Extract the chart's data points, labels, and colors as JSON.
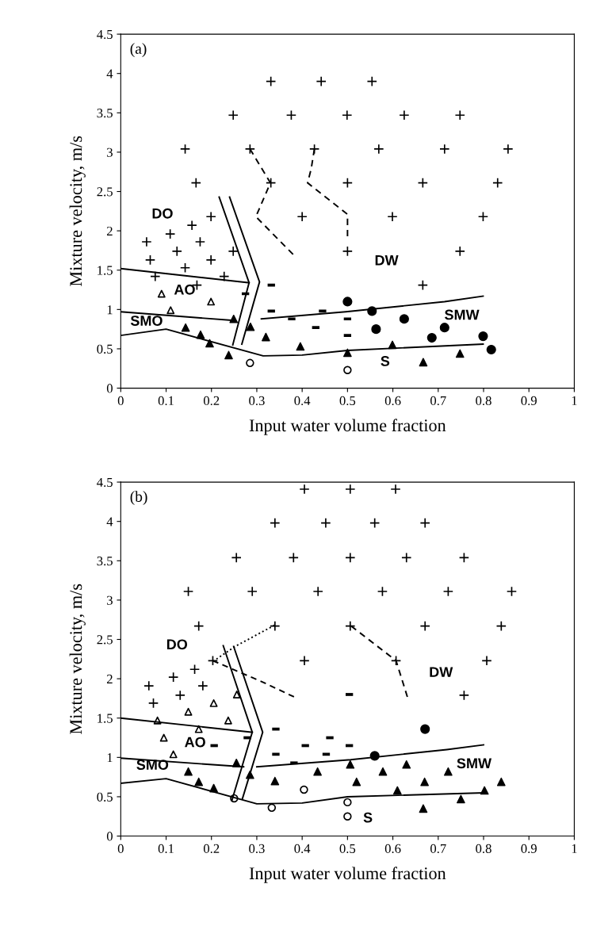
{
  "chart_data": [
    {
      "type": "scatter",
      "xlabel": "Input water volume fraction",
      "ylabel": "Mixture velocity, m/s",
      "xlim": [
        0,
        1
      ],
      "ylim": [
        0,
        4.5
      ],
      "xticks": [
        0,
        0.1,
        0.2,
        0.3,
        0.4,
        0.5,
        0.6,
        0.7,
        0.8,
        0.9,
        1
      ],
      "yticks": [
        0,
        0.5,
        1,
        1.5,
        2,
        2.5,
        3,
        3.5,
        4,
        4.5
      ],
      "grid": false,
      "legend": false,
      "annotations": [
        "(a)",
        "DO",
        "AO",
        "SMO",
        "DW",
        "SMW",
        "S"
      ],
      "series": [
        {
          "marker": "plus",
          "color": "#000000",
          "x": [
            0.331,
            0.442,
            0.248,
            0.376,
            0.499,
            0.142,
            0.285,
            0.427,
            0.166,
            0.331,
            0.5,
            0.199,
            0.4,
            0.157,
            0.109,
            0.057,
            0.175,
            0.124,
            0.248,
            0.5,
            0.065,
            0.199,
            0.142,
            0.076,
            0.228,
            0.168,
            0.554,
            0.625,
            0.748,
            0.569,
            0.714,
            0.854,
            0.666,
            0.831,
            0.599,
            0.799,
            0.748,
            0.666
          ],
          "values": [
            3.9,
            3.9,
            3.47,
            3.47,
            3.47,
            3.04,
            3.04,
            3.04,
            2.61,
            2.61,
            2.61,
            2.18,
            2.18,
            2.07,
            1.96,
            1.86,
            1.86,
            1.74,
            1.74,
            1.74,
            1.63,
            1.63,
            1.53,
            1.42,
            1.42,
            1.31,
            3.9,
            3.47,
            3.47,
            3.04,
            3.04,
            3.04,
            2.61,
            2.61,
            2.18,
            2.18,
            1.74,
            1.31
          ]
        },
        {
          "marker": "triangle-open",
          "color": "#000000",
          "x": [
            0.09,
            0.11,
            0.199
          ],
          "values": [
            1.2,
            0.99,
            1.1
          ]
        },
        {
          "marker": "square",
          "color": "#000000",
          "x": [
            0.275,
            0.332,
            0.332,
            0.377,
            0.43,
            0.445,
            0.5,
            0.5
          ],
          "values": [
            1.2,
            1.31,
            0.98,
            0.88,
            0.77,
            0.98,
            0.88,
            0.67
          ]
        },
        {
          "marker": "circle",
          "color": "#000000",
          "x": [
            0.5,
            0.554,
            0.625,
            0.563,
            0.714,
            0.686,
            0.799,
            0.817
          ],
          "values": [
            1.1,
            0.98,
            0.88,
            0.75,
            0.77,
            0.64,
            0.66,
            0.49
          ]
        },
        {
          "marker": "triangle",
          "color": "#000000",
          "x": [
            0.249,
            0.143,
            0.176,
            0.196,
            0.238,
            0.286,
            0.32,
            0.396,
            0.5,
            0.599,
            0.667,
            0.748
          ],
          "values": [
            0.88,
            0.77,
            0.68,
            0.57,
            0.42,
            0.78,
            0.65,
            0.53,
            0.45,
            0.55,
            0.33,
            0.44
          ]
        },
        {
          "marker": "circle-open",
          "color": "#000000",
          "x": [
            0.285,
            0.5
          ],
          "values": [
            0.32,
            0.23
          ]
        },
        {
          "type": "line",
          "line_style": "solid",
          "color": "#000000",
          "x": [
            0,
            0.283
          ],
          "values": [
            1.52,
            1.34
          ]
        },
        {
          "type": "line",
          "line_style": "solid",
          "color": "#000000",
          "x": [
            0,
            0.249
          ],
          "values": [
            0.97,
            0.86
          ]
        },
        {
          "type": "line",
          "line_style": "solid",
          "color": "#000000",
          "x": [
            0.31,
            0.496,
            0.714,
            0.799
          ],
          "values": [
            0.88,
            0.97,
            1.1,
            1.17
          ]
        },
        {
          "type": "line",
          "line_style": "solid",
          "color": "#000000",
          "x": [
            0,
            0.1,
            0.314,
            0.4,
            0.5,
            0.799
          ],
          "values": [
            0.67,
            0.75,
            0.41,
            0.42,
            0.48,
            0.56
          ]
        },
        {
          "type": "line",
          "line_style": "solid",
          "color": "#000000",
          "x": [
            0.217,
            0.283,
            0.247
          ],
          "values": [
            2.43,
            1.34,
            0.55
          ]
        },
        {
          "type": "line",
          "line_style": "solid",
          "color": "#000000",
          "x": [
            0.24,
            0.306,
            0.267
          ],
          "values": [
            2.43,
            1.35,
            0.56
          ]
        },
        {
          "type": "line",
          "line_style": "dashed",
          "color": "#000000",
          "x": [
            0.285,
            0.33,
            0.298,
            0.38
          ],
          "values": [
            3.04,
            2.61,
            2.18,
            1.7
          ]
        },
        {
          "type": "line",
          "line_style": "dashed",
          "color": "#000000",
          "x": [
            0.427,
            0.42,
            0.412,
            0.5,
            0.5
          ],
          "values": [
            3.04,
            2.79,
            2.61,
            2.21,
            1.93
          ]
        }
      ]
    },
    {
      "type": "scatter",
      "xlabel": "Input water volume fraction",
      "ylabel": "Mixture velocity, m/s",
      "xlim": [
        0,
        1
      ],
      "ylim": [
        0,
        4.5
      ],
      "xticks": [
        0,
        0.1,
        0.2,
        0.3,
        0.4,
        0.5,
        0.6,
        0.7,
        0.8,
        0.9,
        1
      ],
      "yticks": [
        0,
        0.5,
        1,
        1.5,
        2,
        2.5,
        3,
        3.5,
        4,
        4.5
      ],
      "grid": false,
      "legend": false,
      "annotations": [
        "(b)",
        "DO",
        "AO",
        "SMO",
        "DW",
        "SMW",
        "S"
      ],
      "series": [
        {
          "marker": "plus",
          "color": "#000000",
          "x": [
            0.405,
            0.506,
            0.606,
            0.34,
            0.452,
            0.56,
            0.671,
            0.255,
            0.381,
            0.506,
            0.63,
            0.757,
            0.149,
            0.29,
            0.435,
            0.577,
            0.722,
            0.862,
            0.172,
            0.34,
            0.506,
            0.671,
            0.839,
            0.405,
            0.203,
            0.607,
            0.807,
            0.163,
            0.116,
            0.062,
            0.181,
            0.131,
            0.072,
            0.757
          ],
          "values": [
            4.41,
            4.41,
            4.41,
            3.98,
            3.98,
            3.98,
            3.98,
            3.54,
            3.54,
            3.54,
            3.54,
            3.54,
            3.11,
            3.11,
            3.11,
            3.11,
            3.11,
            3.11,
            2.67,
            2.67,
            2.67,
            2.67,
            2.67,
            2.23,
            2.23,
            2.23,
            2.23,
            2.12,
            2.02,
            1.91,
            1.91,
            1.79,
            1.69,
            1.79
          ]
        },
        {
          "marker": "triangle-open",
          "color": "#000000",
          "x": [
            0.081,
            0.149,
            0.205,
            0.256,
            0.172,
            0.237,
            0.095,
            0.116
          ],
          "values": [
            1.47,
            1.58,
            1.69,
            1.8,
            1.36,
            1.47,
            1.25,
            1.04
          ]
        },
        {
          "marker": "square",
          "color": "#000000",
          "x": [
            0.279,
            0.206,
            0.342,
            0.342,
            0.407,
            0.461,
            0.453,
            0.382,
            0.504,
            0.504
          ],
          "values": [
            1.25,
            1.15,
            1.36,
            1.04,
            1.15,
            1.25,
            1.04,
            0.93,
            1.15,
            1.8
          ]
        },
        {
          "marker": "circle",
          "color": "#000000",
          "x": [
            0.671,
            0.56
          ],
          "values": [
            1.36,
            1.02
          ]
        },
        {
          "marker": "triangle",
          "color": "#000000",
          "x": [
            0.255,
            0.149,
            0.172,
            0.205,
            0.285,
            0.34,
            0.434,
            0.506,
            0.578,
            0.63,
            0.722,
            0.52,
            0.67,
            0.839,
            0.61,
            0.802,
            0.667,
            0.75
          ],
          "values": [
            0.93,
            0.82,
            0.69,
            0.61,
            0.78,
            0.7,
            0.82,
            0.91,
            0.82,
            0.91,
            0.82,
            0.69,
            0.69,
            0.69,
            0.58,
            0.58,
            0.35,
            0.47
          ]
        },
        {
          "marker": "circle-open",
          "color": "#000000",
          "x": [
            0.404,
            0.25,
            0.333,
            0.5,
            0.5
          ],
          "values": [
            0.59,
            0.48,
            0.36,
            0.43,
            0.25
          ]
        },
        {
          "type": "line",
          "line_style": "solid",
          "color": "#000000",
          "x": [
            0,
            0.29
          ],
          "values": [
            1.5,
            1.32
          ]
        },
        {
          "type": "line",
          "line_style": "solid",
          "color": "#000000",
          "x": [
            0,
            0.271
          ],
          "values": [
            0.99,
            0.88
          ]
        },
        {
          "type": "line",
          "line_style": "solid",
          "color": "#000000",
          "x": [
            0.3,
            0.507,
            0.719,
            0.8
          ],
          "values": [
            0.88,
            0.97,
            1.1,
            1.16
          ]
        },
        {
          "type": "line",
          "line_style": "solid",
          "color": "#000000",
          "x": [
            0,
            0.1,
            0.3,
            0.4,
            0.5,
            0.8
          ],
          "values": [
            0.67,
            0.73,
            0.41,
            0.42,
            0.5,
            0.55
          ]
        },
        {
          "type": "line",
          "line_style": "solid",
          "color": "#000000",
          "x": [
            0.226,
            0.29,
            0.245
          ],
          "values": [
            2.42,
            1.32,
            0.45
          ]
        },
        {
          "type": "line",
          "line_style": "solid",
          "color": "#000000",
          "x": [
            0.249,
            0.313,
            0.268
          ],
          "values": [
            2.41,
            1.32,
            0.47
          ]
        },
        {
          "type": "line",
          "line_style": "dotted",
          "color": "#000000",
          "x": [
            0.211,
            0.252,
            0.339
          ],
          "values": [
            2.25,
            2.41,
            2.68
          ]
        },
        {
          "type": "line",
          "line_style": "dashed",
          "color": "#000000",
          "x": [
            0.203,
            0.312,
            0.382
          ],
          "values": [
            2.23,
            1.96,
            1.77
          ]
        },
        {
          "type": "line",
          "line_style": "dashed",
          "color": "#000000",
          "x": [
            0.508,
            0.607,
            0.632
          ],
          "values": [
            2.67,
            2.23,
            1.77
          ]
        }
      ]
    }
  ]
}
